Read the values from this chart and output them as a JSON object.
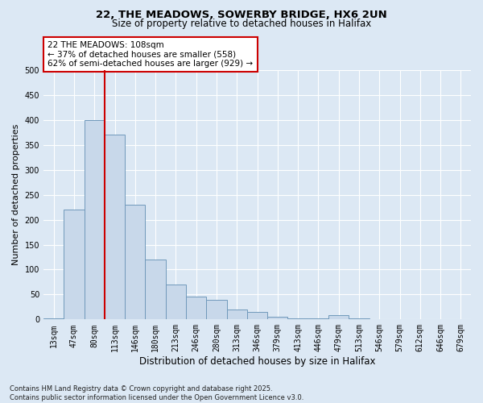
{
  "title1": "22, THE MEADOWS, SOWERBY BRIDGE, HX6 2UN",
  "title2": "Size of property relative to detached houses in Halifax",
  "xlabel": "Distribution of detached houses by size in Halifax",
  "ylabel": "Number of detached properties",
  "categories": [
    "13sqm",
    "47sqm",
    "80sqm",
    "113sqm",
    "146sqm",
    "180sqm",
    "213sqm",
    "246sqm",
    "280sqm",
    "313sqm",
    "346sqm",
    "379sqm",
    "413sqm",
    "446sqm",
    "479sqm",
    "513sqm",
    "546sqm",
    "579sqm",
    "612sqm",
    "646sqm",
    "679sqm"
  ],
  "values": [
    2,
    220,
    400,
    370,
    230,
    120,
    70,
    45,
    40,
    20,
    15,
    5,
    2,
    2,
    8,
    2,
    0,
    0,
    0,
    0,
    0
  ],
  "bar_color": "#c8d8ea",
  "bar_edge_color": "#7099bb",
  "vline_x": 2.5,
  "vline_color": "#cc0000",
  "annotation_text": "22 THE MEADOWS: 108sqm\n← 37% of detached houses are smaller (558)\n62% of semi-detached houses are larger (929) →",
  "annotation_box_facecolor": "#ffffff",
  "annotation_box_edgecolor": "#cc0000",
  "fig_bg_color": "#dce8f4",
  "plot_bg_color": "#dce8f4",
  "grid_color": "#ffffff",
  "ylim": [
    0,
    500
  ],
  "yticks": [
    0,
    50,
    100,
    150,
    200,
    250,
    300,
    350,
    400,
    450,
    500
  ],
  "footnote": "Contains HM Land Registry data © Crown copyright and database right 2025.\nContains public sector information licensed under the Open Government Licence v3.0."
}
